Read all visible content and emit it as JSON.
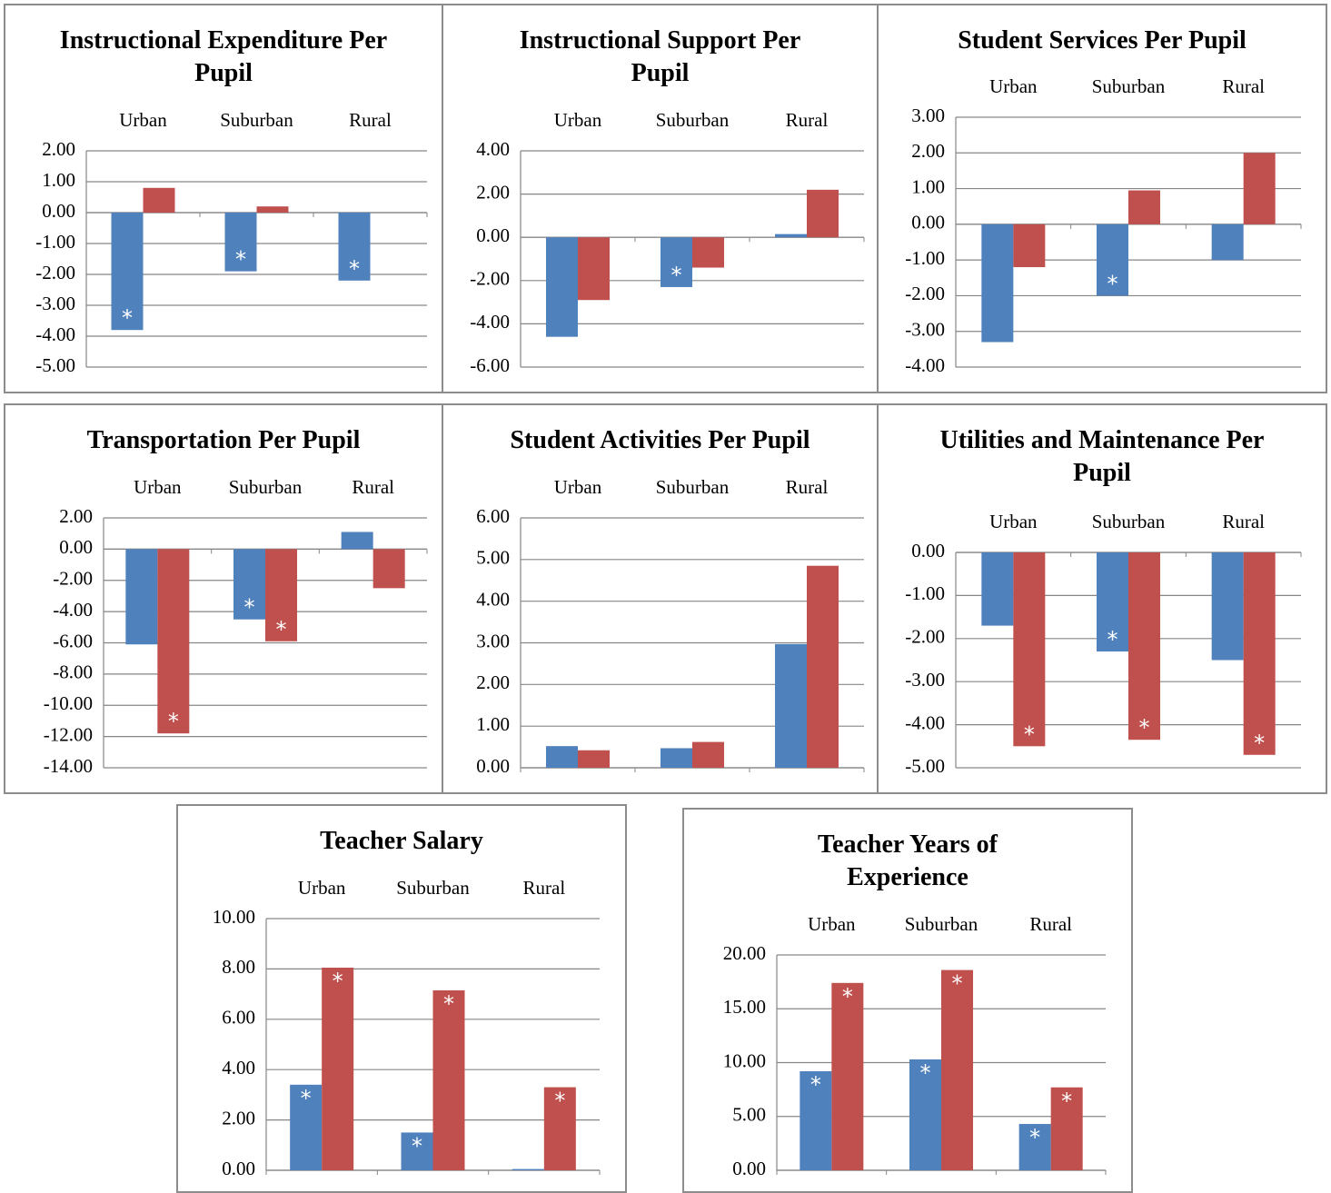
{
  "chart_data": [
    {
      "type": "bar",
      "title": "Instructional Expenditure Per Pupil",
      "categories": [
        "Urban",
        "Suburban",
        "Rural"
      ],
      "series": [
        {
          "color": "#4f81bd",
          "values": [
            -3.8,
            -1.9,
            -2.2
          ],
          "annotations": [
            "*",
            "*",
            "*"
          ]
        },
        {
          "color": "#c0504d",
          "values": [
            0.8,
            0.2,
            0
          ],
          "annotations": [
            null,
            null,
            null
          ]
        }
      ],
      "ylim": [
        -5,
        2
      ],
      "yticks": [
        {
          "value": -5,
          "label": "-5.00"
        },
        {
          "value": -4,
          "label": "-4.00"
        },
        {
          "value": -3,
          "label": "-3.00"
        },
        {
          "value": -2,
          "label": "-2.00"
        },
        {
          "value": -1,
          "label": "-1.00"
        },
        {
          "value": 0,
          "label": "0.00"
        },
        {
          "value": 1,
          "label": "1.00"
        },
        {
          "value": 2,
          "label": "2.00"
        }
      ],
      "grid": true
    },
    {
      "type": "bar",
      "title": "Instructional Support Per Pupil",
      "categories": [
        "Urban",
        "Suburban",
        "Rural"
      ],
      "series": [
        {
          "color": "#4f81bd",
          "values": [
            -4.6,
            -2.3,
            0.15
          ],
          "annotations": [
            null,
            "*",
            null
          ]
        },
        {
          "color": "#c0504d",
          "values": [
            -2.9,
            -1.4,
            2.2
          ],
          "annotations": [
            null,
            null,
            null
          ]
        }
      ],
      "ylim": [
        -6,
        4
      ],
      "yticks": [
        {
          "value": -6,
          "label": "-6.00"
        },
        {
          "value": -4,
          "label": "-4.00"
        },
        {
          "value": -2,
          "label": "-2.00"
        },
        {
          "value": 0,
          "label": "0.00"
        },
        {
          "value": 2,
          "label": "2.00"
        },
        {
          "value": 4,
          "label": "4.00"
        }
      ],
      "grid": true
    },
    {
      "type": "bar",
      "title": "Student Services Per Pupil",
      "categories": [
        "Urban",
        "Suburban",
        "Rural"
      ],
      "series": [
        {
          "color": "#4f81bd",
          "values": [
            -3.3,
            -2.0,
            -1.0
          ],
          "annotations": [
            null,
            "*",
            null
          ]
        },
        {
          "color": "#c0504d",
          "values": [
            -1.2,
            0.95,
            2.0
          ],
          "annotations": [
            null,
            null,
            null
          ]
        }
      ],
      "ylim": [
        -4,
        3
      ],
      "yticks": [
        {
          "value": -4,
          "label": "-4.00"
        },
        {
          "value": -3,
          "label": "-3.00"
        },
        {
          "value": -2,
          "label": "-2.00"
        },
        {
          "value": -1,
          "label": "-1.00"
        },
        {
          "value": 0,
          "label": "0.00"
        },
        {
          "value": 1,
          "label": "1.00"
        },
        {
          "value": 2,
          "label": "2.00"
        },
        {
          "value": 3,
          "label": "3.00"
        }
      ],
      "grid": true
    },
    {
      "type": "bar",
      "title": "Transportation Per Pupil",
      "categories": [
        "Urban",
        "Suburban",
        "Rural"
      ],
      "series": [
        {
          "color": "#4f81bd",
          "values": [
            -6.1,
            -4.5,
            1.1
          ],
          "annotations": [
            null,
            "*",
            null
          ]
        },
        {
          "color": "#c0504d",
          "values": [
            -11.8,
            -5.9,
            -2.5
          ],
          "annotations": [
            "*",
            "*",
            null
          ]
        }
      ],
      "ylim": [
        -14,
        2
      ],
      "yticks": [
        {
          "value": -14,
          "label": "-14.00"
        },
        {
          "value": -12,
          "label": "-12.00"
        },
        {
          "value": -10,
          "label": "-10.00"
        },
        {
          "value": -8,
          "label": "-8.00"
        },
        {
          "value": -6,
          "label": "-6.00"
        },
        {
          "value": -4,
          "label": "-4.00"
        },
        {
          "value": -2,
          "label": "-2.00"
        },
        {
          "value": 0,
          "label": "0.00"
        },
        {
          "value": 2,
          "label": "2.00"
        }
      ],
      "grid": true
    },
    {
      "type": "bar",
      "title": "Student Activities Per Pupil",
      "categories": [
        "Urban",
        "Suburban",
        "Rural"
      ],
      "series": [
        {
          "color": "#4f81bd",
          "values": [
            0.52,
            0.47,
            2.97
          ],
          "annotations": [
            null,
            null,
            null
          ]
        },
        {
          "color": "#c0504d",
          "values": [
            0.42,
            0.62,
            4.85
          ],
          "annotations": [
            null,
            null,
            null
          ]
        }
      ],
      "ylim": [
        0,
        6
      ],
      "yticks": [
        {
          "value": 0,
          "label": "0.00"
        },
        {
          "value": 1,
          "label": "1.00"
        },
        {
          "value": 2,
          "label": "2.00"
        },
        {
          "value": 3,
          "label": "3.00"
        },
        {
          "value": 4,
          "label": "4.00"
        },
        {
          "value": 5,
          "label": "5.00"
        },
        {
          "value": 6,
          "label": "6.00"
        }
      ],
      "grid": true
    },
    {
      "type": "bar",
      "title": "Utilities and Maintenance Per Pupil",
      "categories": [
        "Urban",
        "Suburban",
        "Rural"
      ],
      "series": [
        {
          "color": "#4f81bd",
          "values": [
            -1.7,
            -2.3,
            -2.5
          ],
          "annotations": [
            null,
            "*",
            null
          ]
        },
        {
          "color": "#c0504d",
          "values": [
            -4.5,
            -4.35,
            -4.7
          ],
          "annotations": [
            "*",
            "*",
            "*"
          ]
        }
      ],
      "ylim": [
        -5,
        0
      ],
      "yticks": [
        {
          "value": -5,
          "label": "-5.00"
        },
        {
          "value": -4,
          "label": "-4.00"
        },
        {
          "value": -3,
          "label": "-3.00"
        },
        {
          "value": -2,
          "label": "-2.00"
        },
        {
          "value": -1,
          "label": "-1.00"
        },
        {
          "value": 0,
          "label": "0.00"
        }
      ],
      "grid": true
    },
    {
      "type": "bar",
      "title": "Teacher Salary",
      "categories": [
        "Urban",
        "Suburban",
        "Rural"
      ],
      "series": [
        {
          "color": "#4f81bd",
          "values": [
            3.4,
            1.5,
            0.05
          ],
          "annotations": [
            "*",
            "*",
            null
          ]
        },
        {
          "color": "#c0504d",
          "values": [
            8.05,
            7.15,
            3.3
          ],
          "annotations": [
            "*",
            "*",
            "*"
          ]
        }
      ],
      "ylim": [
        0,
        10
      ],
      "yticks": [
        {
          "value": 0,
          "label": "0.00"
        },
        {
          "value": 2,
          "label": "2.00"
        },
        {
          "value": 4,
          "label": "4.00"
        },
        {
          "value": 6,
          "label": "6.00"
        },
        {
          "value": 8,
          "label": "8.00"
        },
        {
          "value": 10,
          "label": "10.00"
        }
      ],
      "grid": true
    },
    {
      "type": "bar",
      "title": "Teacher Years of Experience",
      "categories": [
        "Urban",
        "Suburban",
        "Rural"
      ],
      "series": [
        {
          "color": "#4f81bd",
          "values": [
            9.2,
            10.3,
            4.3
          ],
          "annotations": [
            "*",
            "*",
            "*"
          ]
        },
        {
          "color": "#c0504d",
          "values": [
            17.4,
            18.6,
            7.7
          ],
          "annotations": [
            "*",
            "*",
            "*"
          ]
        }
      ],
      "ylim": [
        0,
        20
      ],
      "yticks": [
        {
          "value": 0,
          "label": "0.00"
        },
        {
          "value": 5,
          "label": "5.00"
        },
        {
          "value": 10,
          "label": "10.00"
        },
        {
          "value": 15,
          "label": "15.00"
        },
        {
          "value": 20,
          "label": "20.00"
        }
      ],
      "grid": true
    }
  ]
}
